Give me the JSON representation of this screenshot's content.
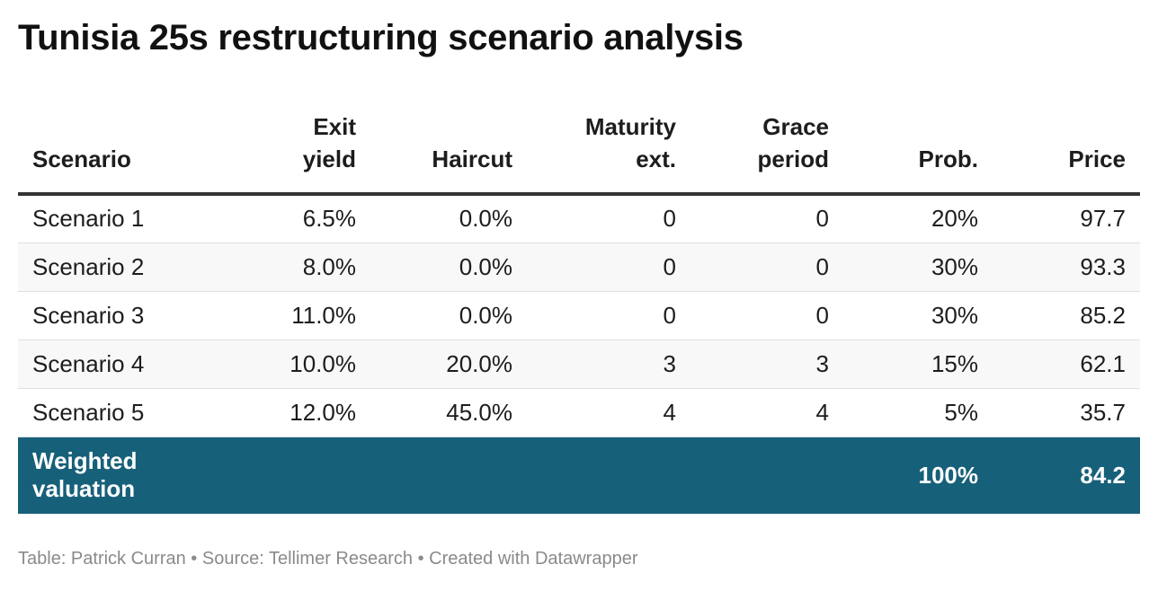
{
  "chart_data": {
    "type": "table",
    "title": "Tunisia 25s restructuring scenario analysis",
    "columns": [
      {
        "key": "scenario",
        "lines": [
          "Scenario"
        ],
        "align": "left"
      },
      {
        "key": "exit_yield",
        "lines": [
          "Exit",
          "yield"
        ],
        "align": "right"
      },
      {
        "key": "haircut",
        "lines": [
          "Haircut"
        ],
        "align": "right"
      },
      {
        "key": "maturity_ext",
        "lines": [
          "Maturity",
          "ext."
        ],
        "align": "right"
      },
      {
        "key": "grace_period",
        "lines": [
          "Grace",
          "period"
        ],
        "align": "right"
      },
      {
        "key": "prob",
        "lines": [
          "Prob."
        ],
        "align": "right"
      },
      {
        "key": "price",
        "lines": [
          "Price"
        ],
        "align": "right"
      }
    ],
    "rows": [
      [
        "Scenario 1",
        "6.5%",
        "0.0%",
        "0",
        "0",
        "20%",
        "97.7"
      ],
      [
        "Scenario 2",
        "8.0%",
        "0.0%",
        "0",
        "0",
        "30%",
        "93.3"
      ],
      [
        "Scenario 3",
        "11.0%",
        "0.0%",
        "0",
        "0",
        "30%",
        "85.2"
      ],
      [
        "Scenario 4",
        "10.0%",
        "20.0%",
        "3",
        "3",
        "15%",
        "62.1"
      ],
      [
        "Scenario 5",
        "12.0%",
        "45.0%",
        "4",
        "4",
        "5%",
        "35.7"
      ]
    ],
    "total_row": {
      "label_lines": [
        "Weighted",
        "valuation"
      ],
      "prob": "100%",
      "price": "84.2"
    },
    "footer": "Table: Patrick Curran • Source: Tellimer Research • Created with Datawrapper",
    "colors": {
      "total_row_background": "#176079",
      "total_row_text": "#ffffff",
      "header_rule": "#333333",
      "stripe": "#f8f8f8",
      "footer_text": "#8a8a8a"
    }
  }
}
